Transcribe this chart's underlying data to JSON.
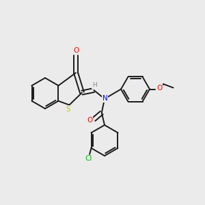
{
  "bg_color": "#ebebeb",
  "bond_color": "#1a1a1a",
  "atom_colors": {
    "O": "#ff0000",
    "S": "#c8c800",
    "N": "#0000ff",
    "Cl": "#00bb00",
    "H": "#888888"
  },
  "lw": 1.4,
  "sep": 0.009,
  "shorten": 0.007,
  "fontsize": 7.0
}
